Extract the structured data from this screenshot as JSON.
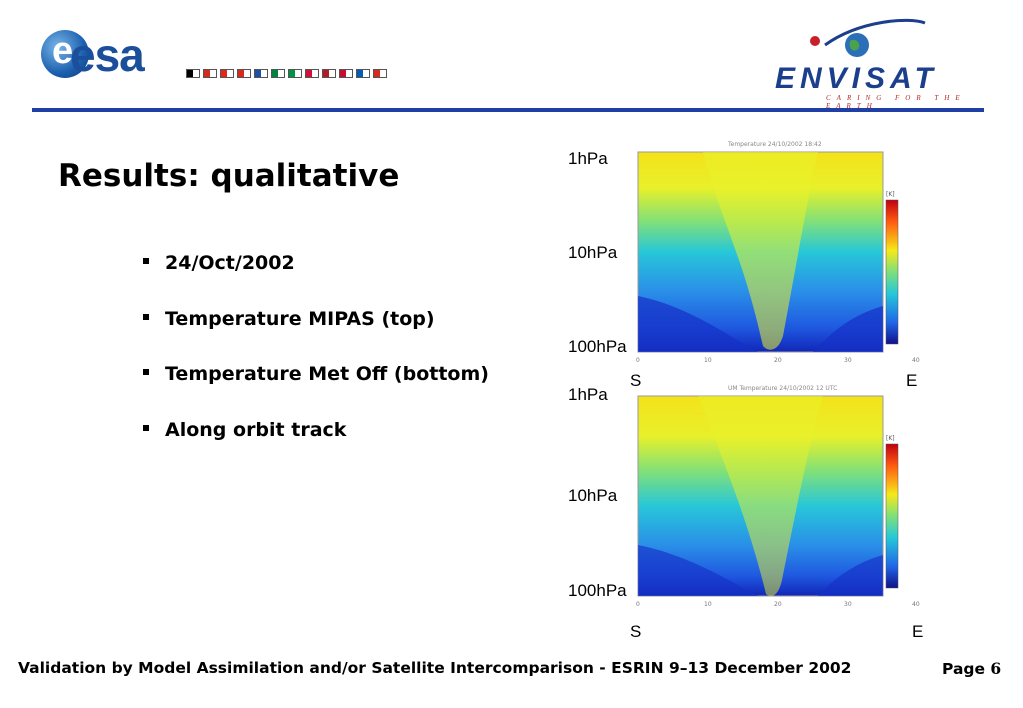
{
  "header": {
    "esa_logo_text": "esa",
    "esa_flags": [
      "#000000",
      "#d52b1e",
      "#e1261c",
      "#d52b1e",
      "#1f4fa0",
      "#00843d",
      "#009246",
      "#d0103a",
      "#ae1c28",
      "#c60c30",
      "#005eb8",
      "#d52b1e"
    ],
    "envisat_logo_text": "ENVISAT",
    "envisat_tagline": "CARING FOR THE EARTH"
  },
  "slide": {
    "title": "Results: qualitative",
    "bullets": [
      "24/Oct/2002",
      "Temperature MIPAS (top)",
      "Temperature Met Off (bottom)",
      "Along orbit track"
    ]
  },
  "plots": {
    "top": {
      "caption": "Temperature 24/10/2002 18:42",
      "y_labels": [
        "1hPa",
        "10hPa",
        "100hPa"
      ],
      "x_end_labels": [
        "S",
        "E"
      ],
      "x_ticks": [
        "0",
        "10",
        "20",
        "30",
        "40"
      ],
      "colorbar_unit": "[K]"
    },
    "bottom": {
      "caption": "UM Temperature 24/10/2002 12 UTC",
      "y_labels": [
        "1hPa",
        "10hPa",
        "100hPa"
      ],
      "x_end_labels": [
        "S",
        "E"
      ],
      "x_ticks": [
        "0",
        "10",
        "20",
        "30",
        "40"
      ],
      "colorbar_unit": "[K]"
    }
  },
  "footer": {
    "text": "Validation by Model Assimilation and/or Satellite Intercomparison - ESRIN 9–13 December 2002",
    "page_label": "Page",
    "page_number": "6"
  }
}
